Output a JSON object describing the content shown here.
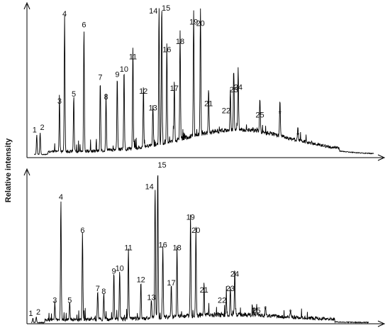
{
  "chart_data": [
    {
      "type": "line",
      "ylabel": "Relative intensity",
      "xlabel": "",
      "title": "",
      "grid": false,
      "axes": {
        "x_tick_labels": false,
        "y_tick_labels": false,
        "arrowheads": true
      },
      "peaks": [
        {
          "label": "1",
          "x": 0.008,
          "y": 0.14
        },
        {
          "label": "2",
          "x": 0.018,
          "y": 0.16
        },
        {
          "label": "3",
          "x": 0.075,
          "y": 0.35
        },
        {
          "label": "4",
          "x": 0.09,
          "y": 0.98
        },
        {
          "label": "5",
          "x": 0.117,
          "y": 0.4
        },
        {
          "label": "6",
          "x": 0.147,
          "y": 0.9
        },
        {
          "label": "7",
          "x": 0.195,
          "y": 0.52
        },
        {
          "label": "8",
          "x": 0.212,
          "y": 0.38
        },
        {
          "label": "9",
          "x": 0.245,
          "y": 0.54
        },
        {
          "label": "10",
          "x": 0.265,
          "y": 0.58
        },
        {
          "label": "11",
          "x": 0.291,
          "y": 0.67
        },
        {
          "label": "12",
          "x": 0.322,
          "y": 0.42
        },
        {
          "label": "13",
          "x": 0.35,
          "y": 0.3
        },
        {
          "label": "14",
          "x": 0.368,
          "y": 1.0
        },
        {
          "label": "15",
          "x": 0.376,
          "y": 1.02
        },
        {
          "label": "16",
          "x": 0.391,
          "y": 0.72
        },
        {
          "label": "17",
          "x": 0.413,
          "y": 0.44
        },
        {
          "label": "18",
          "x": 0.43,
          "y": 0.78
        },
        {
          "label": "19",
          "x": 0.47,
          "y": 0.92
        },
        {
          "label": "20",
          "x": 0.49,
          "y": 0.91
        },
        {
          "label": "21",
          "x": 0.514,
          "y": 0.33
        },
        {
          "label": "22",
          "x": 0.578,
          "y": 0.28
        },
        {
          "label": "23",
          "x": 0.588,
          "y": 0.42
        },
        {
          "label": "24",
          "x": 0.601,
          "y": 0.45
        },
        {
          "label": "25",
          "x": 0.665,
          "y": 0.25
        },
        {
          "label": "*",
          "x": 0.724,
          "y": 0.26
        },
        {
          "label": "*",
          "x": 0.777,
          "y": 0.1
        }
      ]
    },
    {
      "type": "line",
      "ylabel": "Relative intensity",
      "xlabel": "",
      "title": "",
      "grid": false,
      "axes": {
        "x_tick_labels": false,
        "y_tick_labels": false,
        "arrowheads": true
      },
      "peaks": [
        {
          "label": "1",
          "x": 0.005,
          "y": 0.03
        },
        {
          "label": "2",
          "x": 0.015,
          "y": 0.04
        },
        {
          "label": "3",
          "x": 0.07,
          "y": 0.12
        },
        {
          "label": "4",
          "x": 0.088,
          "y": 0.83
        },
        {
          "label": "5",
          "x": 0.114,
          "y": 0.12
        },
        {
          "label": "6",
          "x": 0.152,
          "y": 0.6
        },
        {
          "label": "7",
          "x": 0.197,
          "y": 0.2
        },
        {
          "label": "8",
          "x": 0.215,
          "y": 0.18
        },
        {
          "label": "9",
          "x": 0.245,
          "y": 0.32
        },
        {
          "label": "10",
          "x": 0.262,
          "y": 0.34
        },
        {
          "label": "11",
          "x": 0.288,
          "y": 0.48
        },
        {
          "label": "12",
          "x": 0.325,
          "y": 0.26
        },
        {
          "label": "13",
          "x": 0.356,
          "y": 0.14
        },
        {
          "label": "14",
          "x": 0.367,
          "y": 0.9
        },
        {
          "label": "15",
          "x": 0.375,
          "y": 1.05
        },
        {
          "label": "16",
          "x": 0.39,
          "y": 0.5
        },
        {
          "label": "17",
          "x": 0.415,
          "y": 0.24
        },
        {
          "label": "18",
          "x": 0.432,
          "y": 0.48
        },
        {
          "label": "19",
          "x": 0.472,
          "y": 0.69
        },
        {
          "label": "20",
          "x": 0.488,
          "y": 0.6
        },
        {
          "label": "21",
          "x": 0.512,
          "y": 0.19
        },
        {
          "label": "22",
          "x": 0.578,
          "y": 0.12
        },
        {
          "label": "23",
          "x": 0.59,
          "y": 0.2
        },
        {
          "label": "24",
          "x": 0.603,
          "y": 0.3
        },
        {
          "label": "25",
          "x": 0.667,
          "y": 0.05
        },
        {
          "label": "*",
          "x": 0.694,
          "y": 0.06
        },
        {
          "label": "*",
          "x": 0.768,
          "y": 0.04
        }
      ]
    }
  ]
}
